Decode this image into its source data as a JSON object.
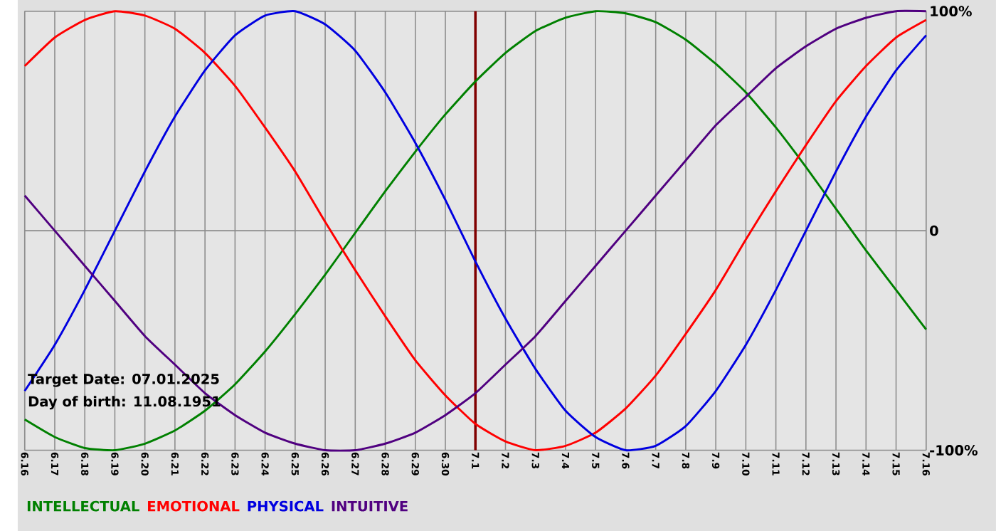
{
  "chart_data": {
    "type": "line",
    "categories": [
      "6.16",
      "6.17",
      "6.18",
      "6.19",
      "6.20",
      "6.21",
      "6.22",
      "6.23",
      "6.24",
      "6.25",
      "6.26",
      "6.27",
      "6.28",
      "6.29",
      "6.30",
      "7.1",
      "7.2",
      "7.3",
      "7.4",
      "7.5",
      "7.6",
      "7.7",
      "7.8",
      "7.9",
      "7.10",
      "7.11",
      "7.12",
      "7.13",
      "7.14",
      "7.15",
      "7.16"
    ],
    "series": [
      {
        "name": "INTELLECTUAL",
        "color": "#008000",
        "values": [
          -86,
          -94,
          -99,
          -100,
          -97,
          -91,
          -82,
          -70,
          -55,
          -38,
          -20,
          -1,
          18,
          36,
          53,
          68,
          81,
          91,
          97,
          100,
          99,
          95,
          87,
          76,
          63,
          47,
          29,
          10,
          -9,
          -27,
          -45
        ]
      },
      {
        "name": "EMOTIONAL",
        "color": "#ff0000",
        "values": [
          75,
          88,
          96,
          100,
          98,
          92,
          81,
          66,
          47,
          27,
          4,
          -18,
          -39,
          -59,
          -75,
          -88,
          -96,
          -100,
          -98,
          -92,
          -81,
          -66,
          -47,
          -27,
          -4,
          18,
          39,
          59,
          75,
          88,
          96
        ]
      },
      {
        "name": "PHYSICAL",
        "color": "#0000e0",
        "values": [
          -73,
          -52,
          -27,
          0,
          27,
          52,
          73,
          89,
          98,
          100,
          94,
          82,
          63,
          40,
          14,
          -14,
          -40,
          -63,
          -82,
          -94,
          -100,
          -98,
          -89,
          -73,
          -52,
          -27,
          0,
          27,
          52,
          73,
          89
        ]
      },
      {
        "name": "INTUITIVE",
        "color": "#500080",
        "values": [
          16,
          0,
          -16,
          -32,
          -48,
          -61,
          -74,
          -84,
          -92,
          -97,
          -100,
          -100,
          -97,
          -92,
          -84,
          -74,
          -61,
          -48,
          -32,
          -16,
          0,
          16,
          32,
          48,
          61,
          74,
          84,
          92,
          97,
          100,
          100
        ]
      }
    ],
    "ylim": [
      -100,
      100
    ],
    "yticks": [
      {
        "value": 100,
        "label": "100%"
      },
      0,
      {
        "value": -100,
        "label": "-100%"
      }
    ],
    "grid": true,
    "legend": "bottom left",
    "marker": "none",
    "line_style": "solid",
    "ref_lines": [
      {
        "axis": "x",
        "value": "7.1",
        "color": "#800000"
      }
    ],
    "annotations": [
      "Target Date: 07.01.2025",
      "Day of birth: 11.08.1951"
    ]
  }
}
